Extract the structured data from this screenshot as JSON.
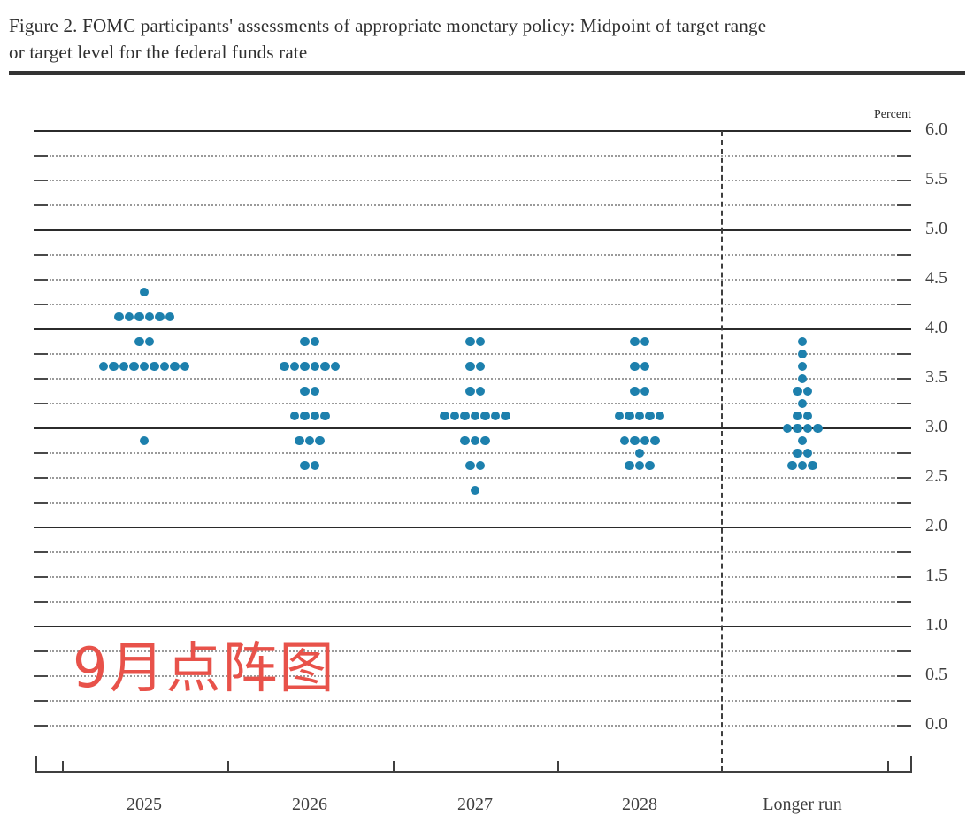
{
  "title": {
    "line1": "Figure 2. FOMC participants' assessments of appropriate monetary policy: Midpoint of target range",
    "line2": "or target level for the federal funds rate"
  },
  "axis": {
    "unit_label": "Percent",
    "y_tick_labels": [
      "6.0",
      "5.5",
      "5.0",
      "4.5",
      "4.0",
      "3.5",
      "3.0",
      "2.5",
      "2.0",
      "1.5",
      "1.0",
      "0.5",
      "0.0"
    ],
    "x_categories": [
      "2025",
      "2026",
      "2027",
      "2028",
      "Longer run"
    ]
  },
  "annotation": {
    "text": "9月点阵图"
  },
  "colors": {
    "dot": "#1d80ad",
    "solid_grid": "#2b2b2b",
    "dotted_grid": "#9a9a9a",
    "end_dash": "#4a4a4a",
    "axis": "#3f3f3f",
    "annotation": "#e8524a",
    "text": "#2f2f2f"
  },
  "chart_data": {
    "type": "scatter",
    "title": "FOMC participants' assessments of appropriate monetary policy: Midpoint of target range or target level for the federal funds rate",
    "ylabel": "Percent",
    "ylim": [
      0.0,
      6.0
    ],
    "gridline_interval": 0.25,
    "tick_label_interval": 0.5,
    "grid": "solid lines at whole percents, dotted lines at quarter percents",
    "legend_position": "none",
    "categories": [
      "2025",
      "2026",
      "2027",
      "2028",
      "Longer run"
    ],
    "separator": "vertical dashed line between 2028 and Longer run",
    "series": [
      {
        "name": "2025",
        "dots": [
          {
            "rate": 4.375,
            "count": 1
          },
          {
            "rate": 4.125,
            "count": 6
          },
          {
            "rate": 3.875,
            "count": 2
          },
          {
            "rate": 3.625,
            "count": 9
          },
          {
            "rate": 2.875,
            "count": 1
          }
        ]
      },
      {
        "name": "2026",
        "dots": [
          {
            "rate": 3.875,
            "count": 2
          },
          {
            "rate": 3.625,
            "count": 6
          },
          {
            "rate": 3.375,
            "count": 2
          },
          {
            "rate": 3.125,
            "count": 4
          },
          {
            "rate": 2.875,
            "count": 3
          },
          {
            "rate": 2.625,
            "count": 2
          }
        ]
      },
      {
        "name": "2027",
        "dots": [
          {
            "rate": 3.875,
            "count": 2
          },
          {
            "rate": 3.625,
            "count": 2
          },
          {
            "rate": 3.375,
            "count": 2
          },
          {
            "rate": 3.125,
            "count": 7
          },
          {
            "rate": 2.875,
            "count": 3
          },
          {
            "rate": 2.625,
            "count": 2
          },
          {
            "rate": 2.375,
            "count": 1
          }
        ]
      },
      {
        "name": "2028",
        "dots": [
          {
            "rate": 3.875,
            "count": 2
          },
          {
            "rate": 3.625,
            "count": 2
          },
          {
            "rate": 3.375,
            "count": 2
          },
          {
            "rate": 3.125,
            "count": 5
          },
          {
            "rate": 2.875,
            "count": 4
          },
          {
            "rate": 2.75,
            "count": 1
          },
          {
            "rate": 2.625,
            "count": 3
          }
        ]
      },
      {
        "name": "Longer run",
        "dots": [
          {
            "rate": 3.875,
            "count": 1
          },
          {
            "rate": 3.75,
            "count": 1
          },
          {
            "rate": 3.625,
            "count": 1
          },
          {
            "rate": 3.5,
            "count": 1
          },
          {
            "rate": 3.375,
            "count": 2
          },
          {
            "rate": 3.25,
            "count": 1
          },
          {
            "rate": 3.125,
            "count": 2
          },
          {
            "rate": 3.0,
            "count": 4
          },
          {
            "rate": 2.875,
            "count": 1
          },
          {
            "rate": 2.75,
            "count": 2
          },
          {
            "rate": 2.625,
            "count": 3
          }
        ]
      }
    ]
  }
}
